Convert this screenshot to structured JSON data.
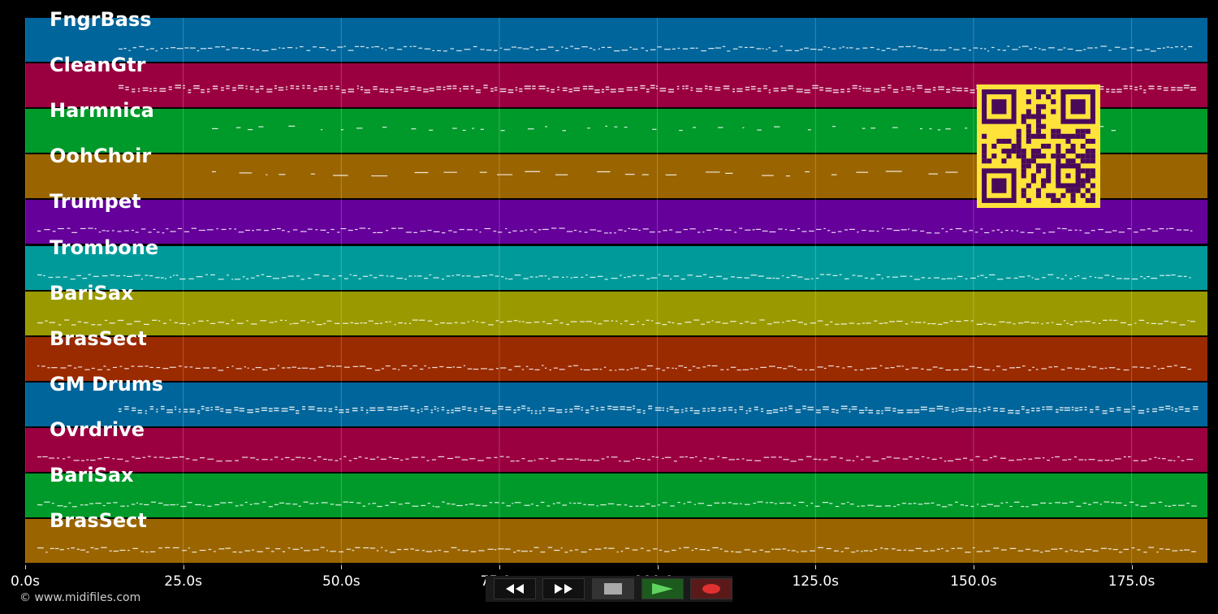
{
  "tracks": [
    {
      "name": "FngrBass",
      "color": "#00659a"
    },
    {
      "name": "CleanGtr",
      "color": "#9a0040"
    },
    {
      "name": "Harmnica",
      "color": "#009a2a"
    },
    {
      "name": "OohChoir",
      "color": "#9a6500"
    },
    {
      "name": "Trumpet",
      "color": "#65009a"
    },
    {
      "name": "Trombone",
      "color": "#009a9a"
    },
    {
      "name": "BariSax",
      "color": "#9a9a00"
    },
    {
      "name": "BrasSect",
      "color": "#9a2a00"
    },
    {
      "name": "GM Drums",
      "color": "#00659a"
    },
    {
      "name": "Ovrdrive",
      "color": "#9a0040"
    },
    {
      "name": "BariSax",
      "color": "#009a2a"
    },
    {
      "name": "BrasSect",
      "color": "#9a6500"
    }
  ],
  "time_axis": {
    "unit": "s",
    "max_seconds": 187,
    "ticks": [
      "0.0s",
      "25.0s",
      "50.0s",
      "75.0s",
      "100.0s",
      "125.0s",
      "150.0s",
      "175.0s"
    ],
    "tick_values": [
      0,
      25,
      50,
      75,
      100,
      125,
      150,
      175
    ]
  },
  "footer": {
    "copyright": "© www.midifiles.com"
  },
  "transport": {
    "buttons": [
      {
        "name": "rewind-button",
        "icon": "rewind-icon"
      },
      {
        "name": "fast-forward-button",
        "icon": "fast-forward-icon"
      },
      {
        "name": "stop-button",
        "icon": "stop-icon"
      },
      {
        "name": "play-button",
        "icon": "play-icon"
      },
      {
        "name": "record-button",
        "icon": "record-icon"
      }
    ]
  },
  "overlay": {
    "icon": "qr-code-icon",
    "color": "#ffe33b"
  }
}
